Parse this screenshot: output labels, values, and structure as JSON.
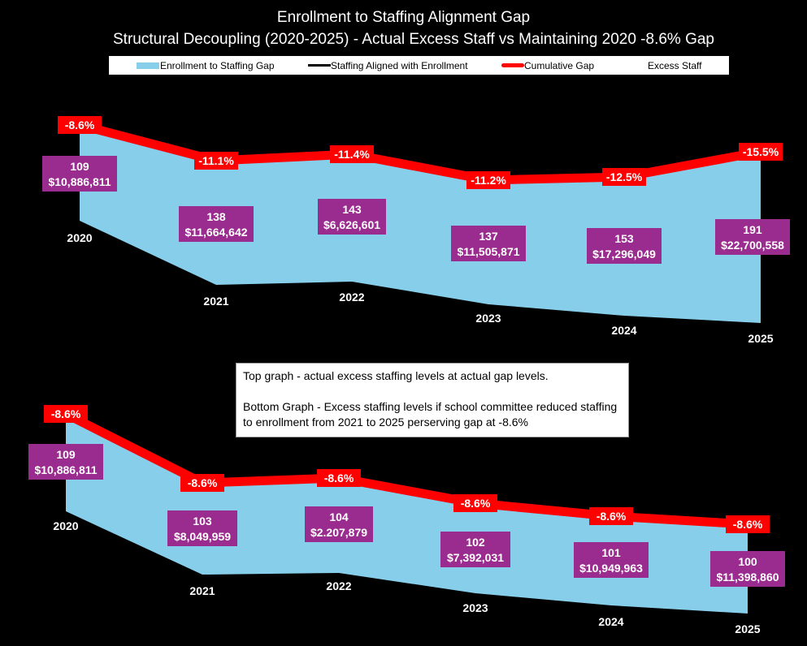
{
  "title": "Enrollment to Staffing Alignment Gap",
  "subtitle": "Structural Decoupling (2020-2025) - Actual Excess Staff vs Maintaining 2020  -8.6%  Gap",
  "legend": {
    "gap_area": "Enrollment to Staffing Gap",
    "aligned": "Staffing Aligned with Enrollment",
    "cumulative": "Cumulative Gap",
    "excess": "Excess Staff"
  },
  "note": {
    "line1": "Top graph - actual excess staffing levels at actual gap levels.",
    "line2": "Bottom Graph - Excess staffing levels if school committee reduced staffing to enrollment from 2021 to 2025 perserving gap at -8.6%"
  },
  "colors": {
    "area": "#87CEEB",
    "line": "#FF0000",
    "box": "#9B2C8F",
    "label_bg": "#FF0000"
  },
  "chart_data": [
    {
      "type": "area",
      "categories": [
        "2020",
        "2021",
        "2022",
        "2023",
        "2024",
        "2025"
      ],
      "cumulative_gap_labels": [
        "-8.6%",
        "-11.1%",
        "-11.4%",
        "-11.2%",
        "-12.5%",
        "-15.5%"
      ],
      "cumulative_gap_pct": [
        -8.6,
        -11.1,
        -11.4,
        -11.2,
        -12.5,
        -15.5
      ],
      "excess_staff": [
        109,
        138,
        143,
        137,
        153,
        191
      ],
      "excess_cost_labels": [
        "$10,886,811",
        "$11,664,642",
        "$6,626,601",
        "$11,505,871",
        "$17,296,049",
        "$22,700,558"
      ]
    },
    {
      "type": "area",
      "categories": [
        "2020",
        "2021",
        "2022",
        "2023",
        "2024",
        "2025"
      ],
      "cumulative_gap_labels": [
        "-8.6%",
        "-8.6%",
        "-8.6%",
        "-8.6%",
        "-8.6%",
        "-8.6%"
      ],
      "cumulative_gap_pct": [
        -8.6,
        -8.6,
        -8.6,
        -8.6,
        -8.6,
        -8.6
      ],
      "excess_staff": [
        109,
        103,
        104,
        102,
        101,
        100
      ],
      "excess_cost_labels": [
        "$10,886,811",
        "$8,049,959",
        "$2.207,879",
        "$7,392,031",
        "$10,949,963",
        "$11,398,860"
      ]
    }
  ]
}
